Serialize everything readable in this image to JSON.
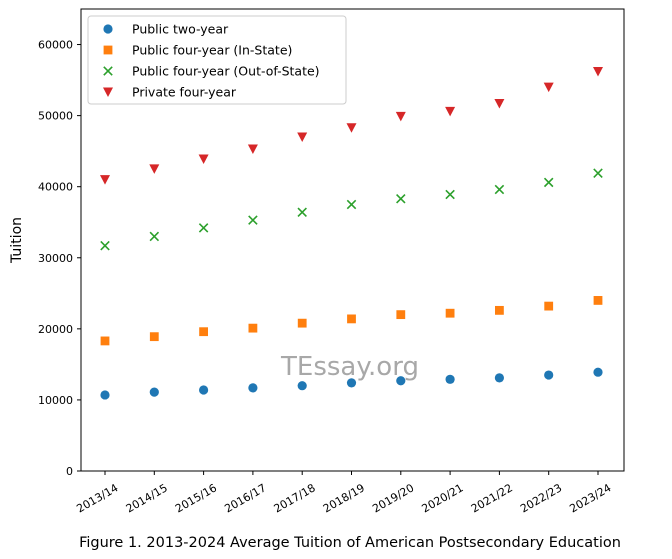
{
  "chart_data": {
    "type": "scatter",
    "caption": "Figure 1. 2013-2024 Average Tuition of American Postsecondary Education",
    "ylabel": "Tuition",
    "xlabel": "",
    "watermark": "TEssay.org",
    "ylim": [
      0,
      65000
    ],
    "yticks": [
      0,
      10000,
      20000,
      30000,
      40000,
      50000,
      60000
    ],
    "categories": [
      "2013/14",
      "2014/15",
      "2015/16",
      "2016/17",
      "2017/18",
      "2018/19",
      "2019/20",
      "2020/21",
      "2021/22",
      "2022/23",
      "2023/24"
    ],
    "legend_position": "top-left",
    "grid": false,
    "series": [
      {
        "name": "Public two-year",
        "marker": "circle",
        "color": "#1f77b4",
        "values": [
          10700,
          11100,
          11400,
          11700,
          12000,
          12400,
          12700,
          12900,
          13100,
          13500,
          13900
        ]
      },
      {
        "name": "Public four-year (In-State)",
        "marker": "square",
        "color": "#ff7f0e",
        "values": [
          18300,
          18900,
          19600,
          20100,
          20800,
          21400,
          22000,
          22200,
          22600,
          23200,
          24000
        ]
      },
      {
        "name": "Public four-year (Out-of-State)",
        "marker": "x",
        "color": "#2ca02c",
        "values": [
          31700,
          33000,
          34200,
          35300,
          36400,
          37500,
          38300,
          38900,
          39600,
          40600,
          41900
        ]
      },
      {
        "name": "Private four-year",
        "marker": "triangle-down",
        "color": "#d62728",
        "values": [
          41000,
          42500,
          43900,
          45300,
          47000,
          48300,
          49900,
          50600,
          51700,
          54000,
          56200
        ]
      }
    ]
  }
}
